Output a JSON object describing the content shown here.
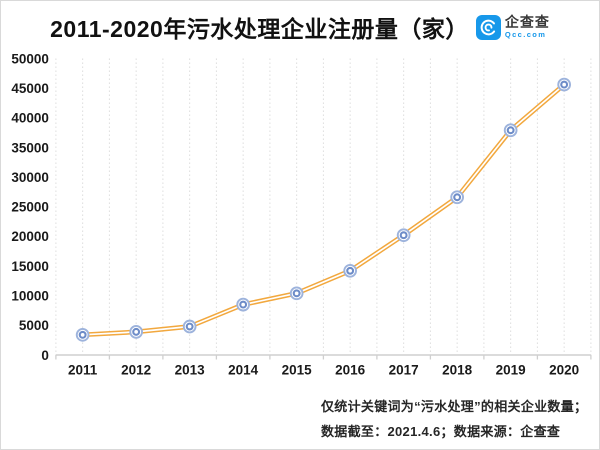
{
  "header": {
    "title": "2011-2020年污水处理企业注册量（家）",
    "logo": {
      "name": "企查查",
      "domain": "Qcc.com"
    }
  },
  "footnote": {
    "line1": "仅统计关键词为“污水处理”的相关企业数量；",
    "line2": "数据截至：2021.4.6；数据来源：企查查"
  },
  "colors": {
    "line": "#F2A83E",
    "line_core": "#FFFFFF",
    "marker_outer_ring": "#9DB3DC",
    "marker_inner_ring": "#6D8CC8",
    "marker_fill": "#FFFFFF",
    "axis": "#CFCFCF",
    "grid": "#DADADA",
    "logo_blue": "#1798EA",
    "text": "#1A1A1A"
  },
  "chart_data": {
    "type": "line",
    "title": "2011-2020年污水处理企业注册量（家）",
    "categories": [
      "2011",
      "2012",
      "2013",
      "2014",
      "2015",
      "2016",
      "2017",
      "2018",
      "2019",
      "2020"
    ],
    "series": [
      {
        "name": "污水处理企业注册量",
        "values": [
          3400,
          3900,
          4800,
          8500,
          10400,
          14200,
          20200,
          26600,
          37900,
          45600
        ]
      }
    ],
    "xlabel": "",
    "ylabel": "",
    "ylim": [
      0,
      50000
    ],
    "ytick_step": 5000,
    "grid": "vertical-dotted-at-half-category",
    "legend_position": "none",
    "line_style": "orange-double-stroke",
    "marker_style": "double-ring-circle"
  }
}
